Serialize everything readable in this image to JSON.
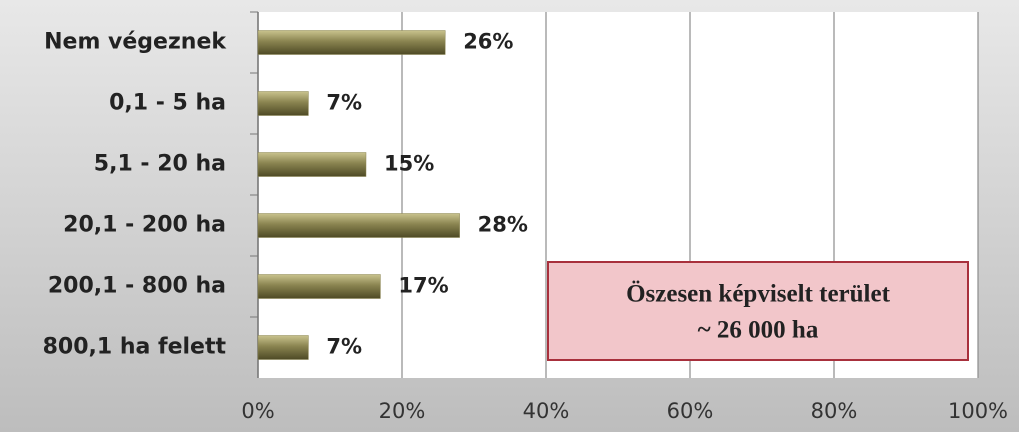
{
  "chart_data": {
    "type": "bar",
    "orientation": "horizontal",
    "categories": [
      "Nem végeznek",
      "0,1 - 5 ha",
      "5,1 - 20 ha",
      "20,1 - 200 ha",
      "200,1 - 800 ha",
      "800,1 ha felett"
    ],
    "values": [
      26,
      7,
      15,
      28,
      17,
      7
    ],
    "value_labels": [
      "26%",
      "7%",
      "15%",
      "28%",
      "17%",
      "7%"
    ],
    "color": "#8a8450",
    "xlim": [
      0,
      100
    ],
    "xticks": [
      {
        "value": 0,
        "label": "0%"
      },
      {
        "value": 20,
        "label": "20%"
      },
      {
        "value": 40,
        "label": "40%"
      },
      {
        "value": 60,
        "label": "60%"
      },
      {
        "value": 80,
        "label": "80%"
      },
      {
        "value": 100,
        "label": "100%"
      }
    ],
    "grid": true,
    "annotations": [
      "Öszesen képviselt terület",
      "~ 26 000 ha"
    ]
  }
}
